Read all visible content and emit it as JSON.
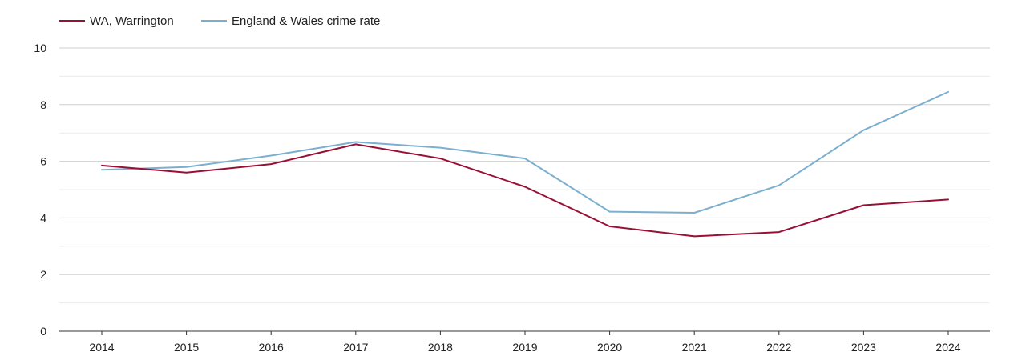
{
  "chart_data": {
    "type": "line",
    "title": "",
    "xlabel": "",
    "ylabel": "",
    "categories": [
      "2014",
      "2015",
      "2016",
      "2017",
      "2018",
      "2019",
      "2020",
      "2021",
      "2022",
      "2023",
      "2024"
    ],
    "ylim": [
      0,
      10
    ],
    "yticks": [
      0,
      2,
      4,
      6,
      8,
      10
    ],
    "grid": true,
    "legend_position": "top-left",
    "series": [
      {
        "name": "WA, Warrington",
        "color": "#990f35",
        "values": [
          5.85,
          5.6,
          5.9,
          6.6,
          6.1,
          5.1,
          3.7,
          3.35,
          3.5,
          4.45,
          4.65
        ]
      },
      {
        "name": "England & Wales crime rate",
        "color": "#7bafd0",
        "values": [
          5.7,
          5.8,
          6.2,
          6.68,
          6.48,
          6.1,
          4.22,
          4.18,
          5.15,
          7.1,
          8.45
        ]
      }
    ]
  }
}
